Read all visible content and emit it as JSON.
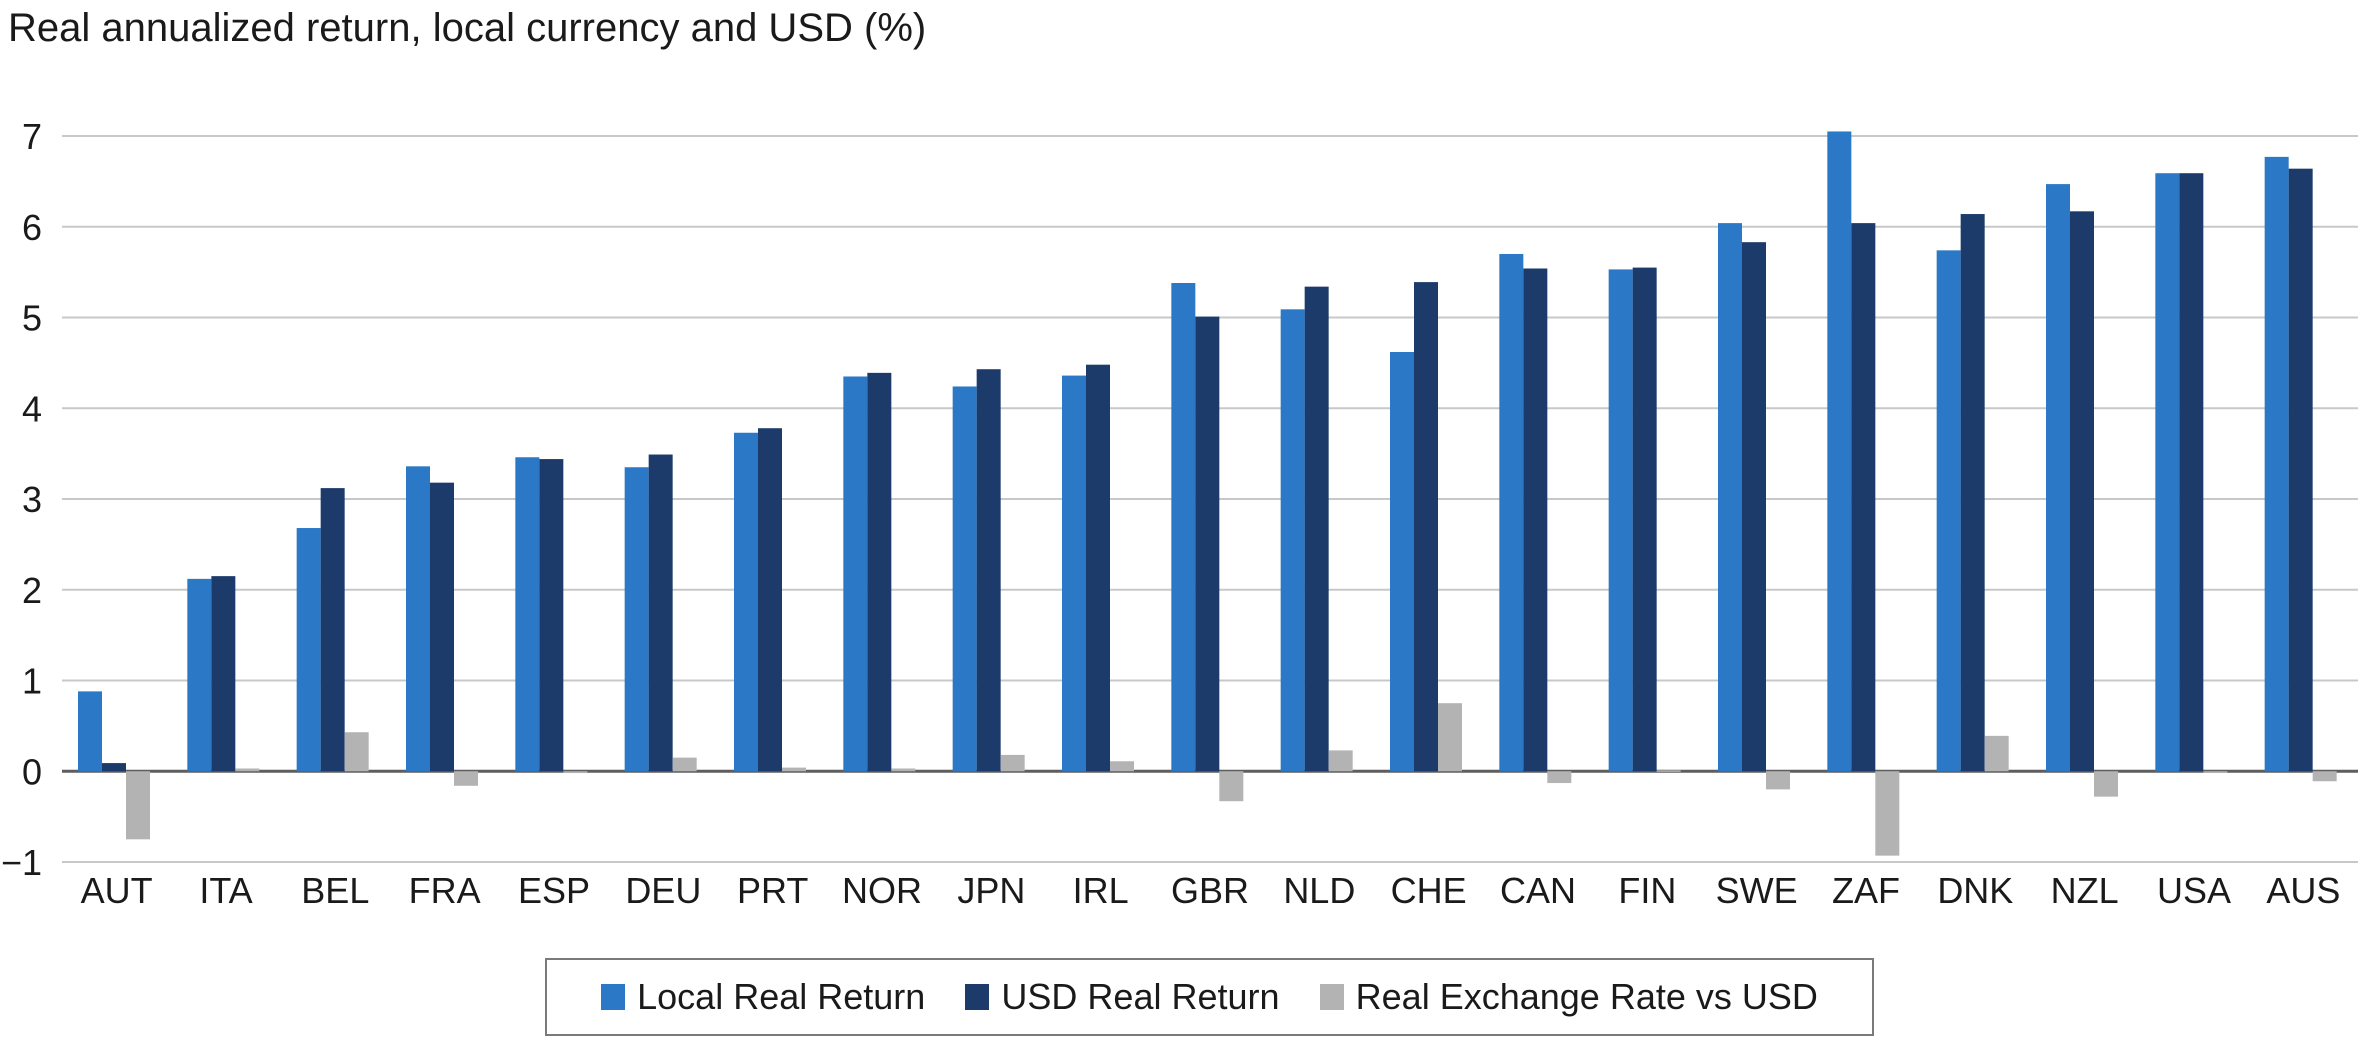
{
  "chart_data": {
    "type": "bar",
    "title": "Real annualized return, local currency and USD (%)",
    "xlabel": "",
    "ylabel": "",
    "ylim": [
      -1,
      7
    ],
    "yticks": [
      -1,
      0,
      1,
      2,
      3,
      4,
      5,
      6,
      7
    ],
    "grid": "horizontal",
    "legend_position": "bottom",
    "categories": [
      "AUT",
      "ITA",
      "BEL",
      "FRA",
      "ESP",
      "DEU",
      "PRT",
      "NOR",
      "JPN",
      "IRL",
      "GBR",
      "NLD",
      "CHE",
      "CAN",
      "FIN",
      "SWE",
      "ZAF",
      "DNK",
      "NZL",
      "USA",
      "AUS"
    ],
    "series": [
      {
        "name": "Local Real Return",
        "color": "#2a78c6",
        "values": [
          0.88,
          2.12,
          2.68,
          3.36,
          3.46,
          3.35,
          3.73,
          4.35,
          4.24,
          4.36,
          5.38,
          5.09,
          4.62,
          5.7,
          5.53,
          6.04,
          7.05,
          5.74,
          6.47,
          6.59,
          6.77
        ]
      },
      {
        "name": "USD Real Return",
        "color": "#1c3a6a",
        "values": [
          0.09,
          2.15,
          3.12,
          3.18,
          3.44,
          3.49,
          3.78,
          4.39,
          4.43,
          4.48,
          5.01,
          5.34,
          5.39,
          5.54,
          5.55,
          5.83,
          6.04,
          6.14,
          6.17,
          6.59,
          6.64
        ]
      },
      {
        "name": "Real Exchange Rate vs USD",
        "color": "#b3b3b3",
        "values": [
          -0.75,
          0.03,
          0.43,
          -0.16,
          -0.02,
          0.15,
          0.04,
          0.03,
          0.18,
          0.11,
          -0.33,
          0.23,
          0.75,
          -0.13,
          0.01,
          -0.2,
          -0.93,
          0.39,
          -0.28,
          0.0,
          -0.11
        ]
      }
    ]
  }
}
